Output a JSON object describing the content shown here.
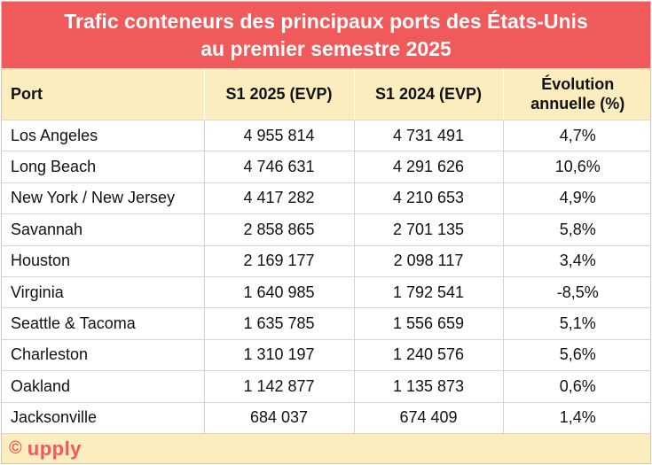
{
  "title": {
    "line1": "Trafic conteneurs des principaux ports des États-Unis",
    "line2": "au premier semestre 2025"
  },
  "table": {
    "headers": {
      "port": "Port",
      "s1_2025": "S1 2025 (EVP)",
      "s1_2024": "S1 2024 (EVP)",
      "evolution_line1": "Évolution",
      "evolution_line2": "annuelle (%)"
    },
    "rows": [
      {
        "port": "Los Angeles",
        "s1_2025": "4 955 814",
        "s1_2024": "4 731 491",
        "evolution": "4,7%"
      },
      {
        "port": "Long Beach",
        "s1_2025": "4 746 631",
        "s1_2024": "4 291 626",
        "evolution": "10,6%"
      },
      {
        "port": "New York / New Jersey",
        "s1_2025": "4 417 282",
        "s1_2024": "4 210 653",
        "evolution": "4,9%"
      },
      {
        "port": "Savannah",
        "s1_2025": "2 858 865",
        "s1_2024": "2 701 135",
        "evolution": "5,8%"
      },
      {
        "port": "Houston",
        "s1_2025": "2 169 177",
        "s1_2024": "2 098 117",
        "evolution": "3,4%"
      },
      {
        "port": "Virginia",
        "s1_2025": "1 640 985",
        "s1_2024": "1 792 541",
        "evolution": "-8,5%"
      },
      {
        "port": "Seattle & Tacoma",
        "s1_2025": "1 635 785",
        "s1_2024": "1 556 659",
        "evolution": "5,1%"
      },
      {
        "port": "Charleston",
        "s1_2025": "1 310 197",
        "s1_2024": "1 240 576",
        "evolution": "5,6%"
      },
      {
        "port": "Oakland",
        "s1_2025": "1 142 877",
        "s1_2024": "1 135 873",
        "evolution": "0,6%"
      },
      {
        "port": "Jacksonville",
        "s1_2025": "684 037",
        "s1_2024": "674 409",
        "evolution": "1,4%"
      }
    ]
  },
  "footer": {
    "copyright_symbol": "©",
    "brand": "upply"
  },
  "colors": {
    "title_background": "#f05a5a",
    "title_text": "#ffffff",
    "header_background": "#fbedbe",
    "footer_background": "#fbedbe",
    "brand_color": "#f05a5a"
  }
}
